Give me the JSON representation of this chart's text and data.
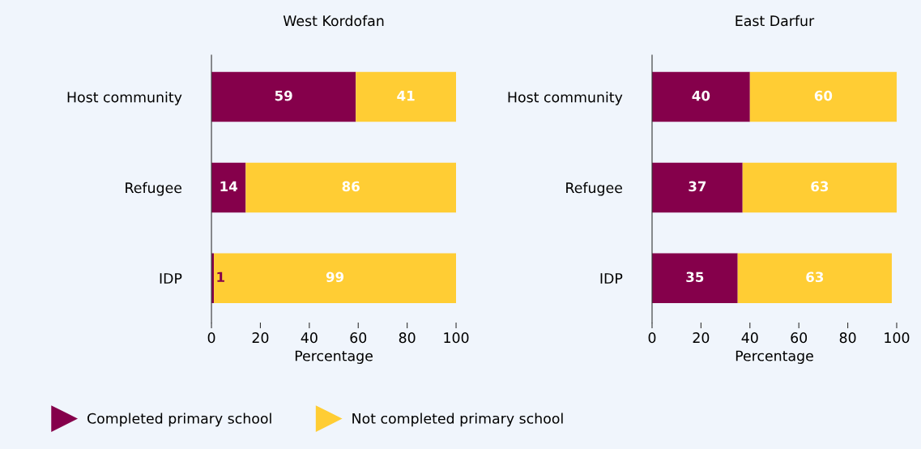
{
  "chart_data": [
    {
      "type": "bar",
      "orientation": "horizontal",
      "stacked": true,
      "title": "West Kordofan",
      "xlabel": "Percentage",
      "categories": [
        "Host community",
        "Refugee",
        "IDP"
      ],
      "xlim": [
        0,
        100
      ],
      "xticks": [
        0,
        20,
        40,
        60,
        80,
        100
      ],
      "data_labels": true,
      "grid": false,
      "legend": "bottom",
      "marker": "triangle",
      "series": [
        {
          "name": "Completed primary school",
          "color": "#85004b",
          "values": [
            59,
            14,
            1
          ]
        },
        {
          "name": "Not completed primary school",
          "color": "#ffcd34",
          "values": [
            41,
            86,
            99
          ]
        }
      ]
    },
    {
      "type": "bar",
      "orientation": "horizontal",
      "stacked": true,
      "title": "East Darfur",
      "xlabel": "Percentage",
      "categories": [
        "Host community",
        "Refugee",
        "IDP"
      ],
      "xlim": [
        0,
        100
      ],
      "xticks": [
        0,
        20,
        40,
        60,
        80,
        100
      ],
      "data_labels": true,
      "grid": false,
      "series": [
        {
          "color": "#85004b",
          "values": [
            40,
            37,
            35
          ]
        },
        {
          "color": "#ffcd34",
          "values": [
            60,
            63,
            63
          ]
        }
      ]
    }
  ]
}
